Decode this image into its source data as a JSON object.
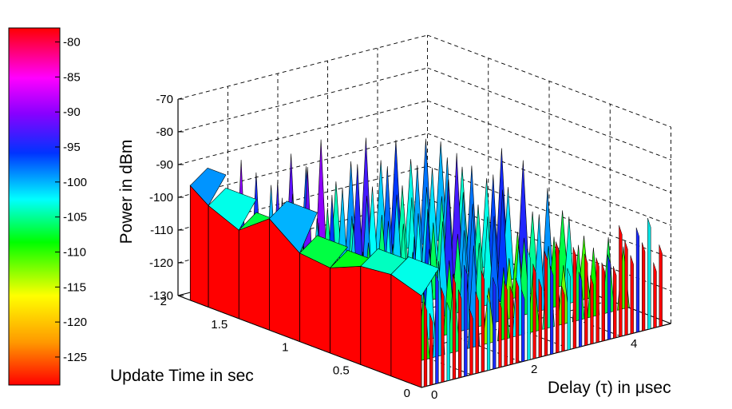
{
  "chart_data": {
    "type": "surface",
    "title": "",
    "xlabel": "Delay (τ)  in μsec",
    "ylabel": "Update Time in sec",
    "zlabel": "Power in dBm",
    "x_ticks": [
      "0",
      "2",
      "4"
    ],
    "y_ticks": [
      "0",
      "0.5",
      "1",
      "1.5",
      "2"
    ],
    "z_ticks": [
      "-70",
      "-80",
      "-90",
      "-100",
      "-110",
      "-120",
      "-130"
    ],
    "xlim": [
      0,
      5
    ],
    "ylim": [
      0,
      2
    ],
    "zlim": [
      -130,
      -70
    ],
    "grid": true,
    "colorbar": {
      "ticks": [
        "-80",
        "-85",
        "-90",
        "-95",
        "-100",
        "-105",
        "-110",
        "-115",
        "-120",
        "-125"
      ],
      "range": [
        -129,
        -78
      ],
      "colormap": [
        "#ff0000",
        "#ff9900",
        "#ffff00",
        "#00ff00",
        "#00ffff",
        "#0033ff",
        "#8800ff",
        "#ff00ff",
        "#ff0000"
      ]
    },
    "front_profile": {
      "comment_free": true,
      "y": [
        1.9,
        1.75,
        1.5,
        1.25,
        1.0,
        0.75,
        0.5,
        0.25,
        0.0
      ],
      "z": [
        -95,
        -99,
        -103,
        -96,
        -103,
        -104,
        -100,
        -99,
        -102
      ]
    },
    "peaks": {
      "x": [
        0.2,
        0.5,
        0.9,
        1.2,
        1.5,
        1.9,
        2.2,
        2.5,
        2.8,
        3.1,
        3.4,
        3.7,
        4.0,
        4.3,
        4.6,
        4.9
      ],
      "z": [
        -98,
        -102,
        -90,
        -95,
        -100,
        -92,
        -97,
        -90,
        -104,
        -99,
        -93,
        -101,
        -96,
        -103,
        -98,
        -100
      ]
    }
  }
}
